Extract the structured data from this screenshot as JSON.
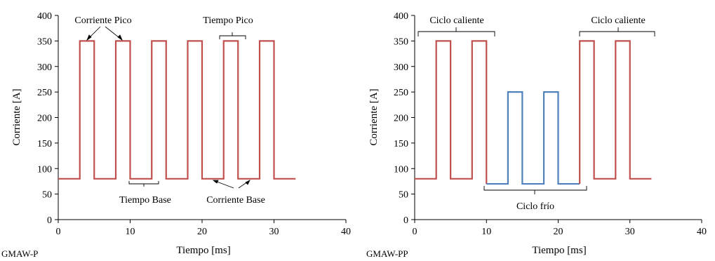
{
  "chart_data": [
    {
      "type": "line",
      "caption": "GMAW-P",
      "xlabel": "Tiempo [ms]",
      "ylabel": "Corriente [A]",
      "xlim": [
        0,
        40
      ],
      "ylim": [
        0,
        400
      ],
      "xticks": [
        0,
        10,
        20,
        30,
        40
      ],
      "yticks": [
        0,
        50,
        100,
        150,
        200,
        250,
        300,
        350,
        400
      ],
      "grid": false,
      "series": [
        {
          "color": "#c0504d",
          "points": [
            [
              0,
              80
            ],
            [
              3,
              80
            ],
            [
              3,
              350
            ],
            [
              5,
              350
            ],
            [
              5,
              80
            ],
            [
              8,
              80
            ],
            [
              8,
              350
            ],
            [
              10,
              350
            ],
            [
              10,
              80
            ],
            [
              13,
              80
            ],
            [
              13,
              350
            ],
            [
              15,
              350
            ],
            [
              15,
              80
            ],
            [
              18,
              80
            ],
            [
              18,
              350
            ],
            [
              20,
              350
            ],
            [
              20,
              80
            ],
            [
              23,
              80
            ],
            [
              23,
              350
            ],
            [
              25,
              350
            ],
            [
              25,
              80
            ],
            [
              28,
              80
            ],
            [
              28,
              350
            ],
            [
              30,
              350
            ],
            [
              30,
              80
            ],
            [
              33,
              80
            ]
          ]
        }
      ],
      "annotations": [
        {
          "id": "corriente-pico",
          "text": "Corriente Pico",
          "x": 4.5,
          "y": 388
        },
        {
          "id": "tiempo-pico",
          "text": "Tiempo Pico",
          "x": 24,
          "y": 388
        },
        {
          "id": "tiempo-base",
          "text": "Tiempo Base",
          "x": 12,
          "y": 52
        },
        {
          "id": "corriente-base",
          "text": "Corriente Base",
          "x": 25.5,
          "y": 52
        }
      ]
    },
    {
      "type": "line",
      "caption": "GMAW-PP",
      "xlabel": "Tiempo [ms]",
      "ylabel": "Corriente [A]",
      "xlim": [
        0,
        40
      ],
      "ylim": [
        0,
        400
      ],
      "xticks": [
        0,
        10,
        20,
        30,
        40
      ],
      "yticks": [
        0,
        50,
        100,
        150,
        200,
        250,
        300,
        350,
        400
      ],
      "grid": false,
      "series": [
        {
          "color": "#c0504d",
          "points": [
            [
              0,
              80
            ],
            [
              3,
              80
            ],
            [
              3,
              350
            ],
            [
              5,
              350
            ],
            [
              5,
              80
            ],
            [
              8,
              80
            ],
            [
              8,
              350
            ],
            [
              10,
              350
            ],
            [
              10,
              70
            ]
          ]
        },
        {
          "color": "#4f81bd",
          "points": [
            [
              10,
              70
            ],
            [
              13,
              70
            ],
            [
              13,
              250
            ],
            [
              15,
              250
            ],
            [
              15,
              70
            ],
            [
              18,
              70
            ],
            [
              18,
              250
            ],
            [
              20,
              250
            ],
            [
              20,
              70
            ],
            [
              23,
              70
            ]
          ]
        },
        {
          "color": "#c0504d",
          "points": [
            [
              23,
              70
            ],
            [
              23,
              350
            ],
            [
              25,
              350
            ],
            [
              25,
              80
            ],
            [
              28,
              80
            ],
            [
              28,
              350
            ],
            [
              30,
              350
            ],
            [
              30,
              80
            ],
            [
              33,
              80
            ]
          ]
        }
      ],
      "annotations": [
        {
          "id": "ciclo-caliente-1",
          "text": "Ciclo caliente",
          "x": 5.5,
          "y": 388
        },
        {
          "id": "ciclo-frio",
          "text": "Ciclo frío",
          "x": 16.5,
          "y": 20
        },
        {
          "id": "ciclo-caliente-2",
          "text": "Ciclo caliente",
          "x": 28,
          "y": 388
        }
      ]
    }
  ]
}
